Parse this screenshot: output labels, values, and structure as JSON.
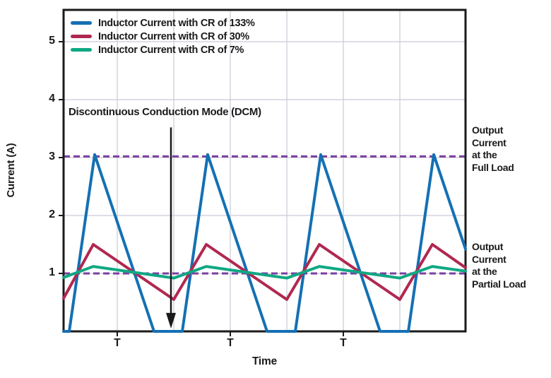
{
  "chart_data": {
    "type": "line",
    "title": "",
    "xlabel": "Time",
    "ylabel": "Current (A)",
    "x_unit": "switching periods (T)",
    "y_unit": "A",
    "xlim": [
      0,
      3.556
    ],
    "ylim": [
      0,
      5.549
    ],
    "yticks": [
      1,
      2,
      3,
      4,
      5
    ],
    "xticks": [
      {
        "t": 0.475,
        "label": "T"
      },
      {
        "t": 1.475,
        "label": "T"
      },
      {
        "t": 2.475,
        "label": "T"
      }
    ],
    "vgrid": [
      0.475,
      0.975,
      1.475,
      1.975,
      2.475,
      2.975
    ],
    "grid_color": "#c9cad6",
    "axis_color": "#1a1a1a",
    "legend_position": "top-left inside plot",
    "series": [
      {
        "name": "Inductor Current with CR of 133%",
        "color": "#1470b4",
        "x": [
          0,
          0.05,
          0.275,
          0.8,
          1.05,
          1.275,
          1.8,
          2.05,
          2.275,
          2.8,
          3.05,
          3.275,
          3.556
        ],
        "y": [
          0,
          0,
          3.05,
          0,
          0,
          3.05,
          0,
          0,
          3.05,
          0,
          0,
          3.05,
          1.42
        ]
      },
      {
        "name": "Inductor Current with CR of 30%",
        "color": "#b02850",
        "x": [
          0,
          0.2625,
          0.975,
          1.2625,
          1.975,
          2.2625,
          2.975,
          3.2625,
          3.556
        ],
        "y": [
          0.57,
          1.5,
          0.55,
          1.5,
          0.55,
          1.5,
          0.55,
          1.5,
          1.1
        ]
      },
      {
        "name": "Inductor Current with CR of 7%",
        "color": "#0fa883",
        "x": [
          0,
          0.2625,
          0.975,
          1.2625,
          1.975,
          2.2625,
          2.975,
          3.2625,
          3.556
        ],
        "y": [
          0.93,
          1.12,
          0.92,
          1.12,
          0.92,
          1.12,
          0.92,
          1.12,
          1.04
        ]
      }
    ],
    "ref_lines": [
      {
        "y": 3.02,
        "style": "dashed",
        "color": "#7b3fa0",
        "label": "Output Current at the Full Load",
        "label_wrapped": "Output\nCurrent\nat the\nFull Load"
      },
      {
        "y": 1.0,
        "style": "dashed",
        "color": "#7b3fa0",
        "label": "Output Current at the Partial Load",
        "label_wrapped": "Output\nCurrent\nat the\nPartial Load"
      }
    ],
    "annotation": {
      "text": "Discontinuous Conduction Mode (DCM)",
      "arrow_t": 0.95,
      "arrow_from_A": 3.52,
      "arrow_to_A": 0.05
    }
  }
}
